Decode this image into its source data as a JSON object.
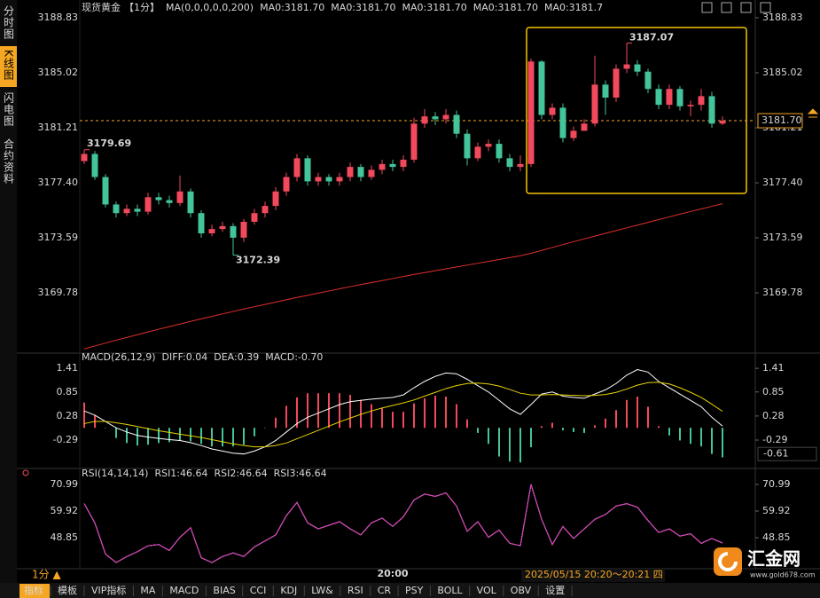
{
  "sidebar_tabs": [
    "分时图",
    "K线图",
    "闪电图",
    "合约资料"
  ],
  "chart_data": [
    {
      "type": "candlestick",
      "title": "现货黄金",
      "period": "【1分】",
      "indicator": "MA(0,0,0,0,0,200)",
      "ma_legend": [
        {
          "label": "MA0:3181.70",
          "color": "#ffffff"
        },
        {
          "label": "MA0:3181.70",
          "color": "#e6d200"
        },
        {
          "label": "MA0:3181.70",
          "color": "#d62fd6"
        },
        {
          "label": "MA0:3181.70",
          "color": "#3fc33f"
        },
        {
          "label": "MA0:3181.7",
          "color": "#9a9a9a"
        }
      ],
      "up_color": "#f2495c",
      "down_color": "#43c49a",
      "categories": [
        null,
        null,
        null,
        null,
        null,
        null,
        null,
        null,
        null,
        null,
        null,
        null,
        null,
        null,
        null,
        null,
        null,
        null,
        null,
        null,
        null,
        null,
        null,
        null,
        null,
        null,
        null,
        null,
        null,
        "20:00",
        null,
        null,
        null,
        null,
        null,
        null,
        null,
        null,
        null,
        null,
        null,
        null,
        null,
        null,
        null,
        null,
        null,
        null,
        null,
        null,
        null,
        null,
        null,
        null,
        null,
        null,
        null,
        null,
        null,
        null,
        null
      ],
      "open": [
        3178.9,
        3179.4,
        3177.8,
        3175.9,
        3175.3,
        3175.6,
        3175.4,
        3176.4,
        3176.2,
        3176.0,
        3176.8,
        3175.3,
        3173.9,
        3174.2,
        3174.4,
        3173.6,
        3174.7,
        3175.3,
        3175.8,
        3176.8,
        3177.8,
        3179.1,
        3177.5,
        3177.8,
        3177.5,
        3177.8,
        3178.5,
        3177.8,
        3178.3,
        3178.7,
        3178.5,
        3179.0,
        3181.5,
        3182.0,
        3181.8,
        3182.1,
        3180.8,
        3179.1,
        3179.9,
        3180.1,
        3179.1,
        3178.5,
        3178.7,
        3185.8,
        3182.1,
        3182.6,
        3180.5,
        3181.0,
        3181.5,
        3184.2,
        3183.3,
        3185.3,
        3185.6,
        3185.1,
        3183.9,
        3182.8,
        3183.9,
        3182.7,
        3182.8,
        3183.4,
        3181.5
      ],
      "high": [
        3179.69,
        3179.6,
        3178.0,
        3176.1,
        3175.9,
        3175.9,
        3176.7,
        3176.7,
        3176.5,
        3177.9,
        3177.0,
        3175.5,
        3174.5,
        3174.7,
        3174.6,
        3174.9,
        3175.6,
        3176.1,
        3177.1,
        3178.1,
        3179.4,
        3179.3,
        3178.1,
        3178.0,
        3178.1,
        3178.8,
        3178.7,
        3178.6,
        3179.0,
        3179.0,
        3179.3,
        3181.9,
        3182.5,
        3182.3,
        3182.5,
        3182.4,
        3181.1,
        3180.2,
        3180.4,
        3180.4,
        3179.4,
        3179.3,
        3186.0,
        3185.9,
        3182.9,
        3182.9,
        3181.3,
        3181.8,
        3186.2,
        3184.5,
        3185.6,
        3187.07,
        3185.9,
        3185.3,
        3184.2,
        3184.2,
        3184.1,
        3183.1,
        3183.9,
        3183.7,
        3182.0
      ],
      "low": [
        3178.7,
        3177.6,
        3175.7,
        3175.0,
        3175.1,
        3175.1,
        3175.2,
        3175.9,
        3175.7,
        3175.8,
        3175.0,
        3173.6,
        3173.7,
        3174.0,
        3172.39,
        3173.3,
        3174.5,
        3175.0,
        3175.5,
        3176.5,
        3177.5,
        3177.2,
        3177.2,
        3177.2,
        3177.2,
        3177.5,
        3177.5,
        3177.6,
        3178.0,
        3178.2,
        3178.2,
        3178.8,
        3181.2,
        3181.4,
        3181.5,
        3180.5,
        3178.6,
        3178.9,
        3179.6,
        3178.8,
        3178.2,
        3178.2,
        3178.5,
        3181.8,
        3181.8,
        3180.2,
        3180.3,
        3181.0,
        3181.3,
        3182.1,
        3183.0,
        3185.0,
        3184.8,
        3183.6,
        3182.5,
        3182.5,
        3182.4,
        3182.0,
        3182.4,
        3181.2,
        3181.4
      ],
      "close": [
        3179.4,
        3177.8,
        3175.9,
        3175.3,
        3175.6,
        3175.4,
        3176.4,
        3176.2,
        3176.0,
        3176.8,
        3175.3,
        3173.9,
        3174.2,
        3174.4,
        3173.6,
        3174.7,
        3175.3,
        3175.8,
        3176.8,
        3177.8,
        3179.1,
        3177.5,
        3177.8,
        3177.5,
        3177.8,
        3178.5,
        3177.8,
        3178.3,
        3178.7,
        3178.5,
        3179.0,
        3181.5,
        3182.0,
        3181.8,
        3182.1,
        3180.8,
        3179.1,
        3179.9,
        3180.1,
        3179.1,
        3178.5,
        3178.7,
        3185.8,
        3182.1,
        3182.6,
        3180.5,
        3181.0,
        3181.5,
        3184.2,
        3183.3,
        3185.3,
        3185.6,
        3185.1,
        3183.9,
        3182.8,
        3183.9,
        3182.7,
        3182.8,
        3183.4,
        3181.5,
        3181.7
      ],
      "ma_line": {
        "color": "#e0302a",
        "values": [
          3165.9,
          3166.1,
          3166.3,
          3166.5,
          3166.69,
          3166.88,
          3167.07,
          3167.26,
          3167.44,
          3167.62,
          3167.8,
          3167.98,
          3168.15,
          3168.32,
          3168.49,
          3168.66,
          3168.82,
          3168.98,
          3169.14,
          3169.3,
          3169.46,
          3169.61,
          3169.76,
          3169.91,
          3170.06,
          3170.21,
          3170.35,
          3170.49,
          3170.63,
          3170.77,
          3170.91,
          3171.05,
          3171.18,
          3171.31,
          3171.44,
          3171.57,
          3171.7,
          3171.83,
          3171.96,
          3172.09,
          3172.22,
          3172.35,
          3172.52,
          3172.72,
          3172.92,
          3173.12,
          3173.32,
          3173.52,
          3173.71,
          3173.9,
          3174.09,
          3174.28,
          3174.47,
          3174.66,
          3174.85,
          3175.04,
          3175.23,
          3175.41,
          3175.59,
          3175.77,
          3175.95
        ]
      },
      "last_price": {
        "value": 3181.7,
        "label": "3181.70",
        "color": "#f5a623"
      },
      "ylim": [
        3165.79,
        3188.83
      ],
      "yticks": [
        3188.83,
        3185.02,
        3181.21,
        {
          "value": 3177.4,
          "label": "3177.40"
        },
        3173.59,
        3169.78
      ]
    },
    {
      "type": "macd",
      "title": "MACD(26,12,9)",
      "series": [
        {
          "name": "DIFF:0.04",
          "color": "#ffffff",
          "values": [
            0.4,
            0.3,
            0.15,
            0.0,
            -0.1,
            -0.18,
            -0.22,
            -0.25,
            -0.28,
            -0.3,
            -0.35,
            -0.42,
            -0.5,
            -0.55,
            -0.6,
            -0.62,
            -0.55,
            -0.45,
            -0.3,
            -0.1,
            0.1,
            0.25,
            0.35,
            0.45,
            0.55,
            0.62,
            0.65,
            0.68,
            0.7,
            0.72,
            0.78,
            0.95,
            1.1,
            1.22,
            1.3,
            1.28,
            1.15,
            1.0,
            0.85,
            0.65,
            0.45,
            0.32,
            0.55,
            0.8,
            0.85,
            0.75,
            0.72,
            0.7,
            0.8,
            0.9,
            1.05,
            1.25,
            1.38,
            1.32,
            1.1,
            0.95,
            0.8,
            0.65,
            0.5,
            0.25,
            0.04
          ]
        },
        {
          "name": "DEA:0.39",
          "color": "#e6d200",
          "values": [
            0.1,
            0.15,
            0.15,
            0.12,
            0.08,
            0.03,
            -0.02,
            -0.07,
            -0.11,
            -0.15,
            -0.19,
            -0.23,
            -0.28,
            -0.33,
            -0.38,
            -0.42,
            -0.45,
            -0.45,
            -0.42,
            -0.36,
            -0.26,
            -0.16,
            -0.06,
            0.04,
            0.14,
            0.23,
            0.32,
            0.4,
            0.47,
            0.53,
            0.59,
            0.66,
            0.75,
            0.84,
            0.93,
            1.0,
            1.05,
            1.06,
            1.04,
            0.99,
            0.91,
            0.82,
            0.78,
            0.78,
            0.79,
            0.78,
            0.77,
            0.76,
            0.77,
            0.79,
            0.84,
            0.92,
            1.01,
            1.07,
            1.08,
            1.04,
            0.95,
            0.84,
            0.72,
            0.56,
            0.39
          ]
        }
      ],
      "histogram": {
        "name": "MACD:-0.70",
        "color": "#d62fd6",
        "up_color": "#f2495c",
        "down_color": "#43c49a",
        "values": [
          0.6,
          0.3,
          0.0,
          -0.24,
          -0.36,
          -0.42,
          -0.4,
          -0.36,
          -0.34,
          -0.3,
          -0.32,
          -0.38,
          -0.44,
          -0.44,
          -0.44,
          -0.4,
          -0.2,
          0.0,
          0.24,
          0.52,
          0.72,
          0.82,
          0.82,
          0.82,
          0.82,
          0.78,
          0.66,
          0.56,
          0.46,
          0.38,
          0.38,
          0.58,
          0.7,
          0.76,
          0.74,
          0.56,
          0.2,
          -0.12,
          -0.38,
          -0.68,
          -0.8,
          -0.82,
          -0.46,
          0.04,
          0.12,
          -0.06,
          -0.1,
          -0.12,
          0.06,
          0.22,
          0.42,
          0.66,
          0.74,
          0.5,
          0.04,
          -0.18,
          -0.3,
          -0.38,
          -0.44,
          -0.62,
          -0.7
        ]
      },
      "cursor_value": -0.61,
      "ylim": [
        -0.9,
        1.56
      ],
      "yticks": [
        1.41,
        0.85,
        0.28,
        -0.29
      ]
    },
    {
      "type": "rsi",
      "title": "RSI(14,14,14)",
      "series": [
        {
          "name": "RSI1:46.64",
          "color": "#ffffff",
          "values": [
            63.0,
            55.0,
            42.0,
            38.5,
            41.0,
            43.0,
            45.5,
            46.0,
            43.5,
            49.0,
            53.0,
            40.5,
            38.5,
            41.0,
            42.5,
            41.0,
            45.0,
            47.5,
            50.0,
            58.0,
            63.5,
            55.0,
            52.5,
            54.0,
            55.5,
            52.5,
            50.0,
            55.0,
            57.0,
            53.5,
            57.5,
            64.5,
            67.0,
            66.0,
            67.5,
            62.0,
            51.5,
            55.5,
            49.0,
            52.0,
            46.5,
            45.5,
            71.0,
            56.5,
            46.0,
            53.5,
            48.5,
            52.5,
            56.5,
            58.5,
            62.0,
            63.0,
            61.5,
            56.0,
            51.0,
            52.5,
            49.5,
            50.5,
            46.5,
            48.5,
            46.64
          ]
        },
        {
          "name": "RSI2:46.64",
          "color": "#e6d200",
          "values": [
            63.0,
            55.0,
            42.0,
            38.5,
            41.0,
            43.0,
            45.5,
            46.0,
            43.5,
            49.0,
            53.0,
            40.5,
            38.5,
            41.0,
            42.5,
            41.0,
            45.0,
            47.5,
            50.0,
            58.0,
            63.5,
            55.0,
            52.5,
            54.0,
            55.5,
            52.5,
            50.0,
            55.0,
            57.0,
            53.5,
            57.5,
            64.5,
            67.0,
            66.0,
            67.5,
            62.0,
            51.5,
            55.5,
            49.0,
            52.0,
            46.5,
            45.5,
            71.0,
            56.5,
            46.0,
            53.5,
            48.5,
            52.5,
            56.5,
            58.5,
            62.0,
            63.0,
            61.5,
            56.0,
            51.0,
            52.5,
            49.5,
            50.5,
            46.5,
            48.5,
            46.64
          ]
        },
        {
          "name": "RSI3:46.64",
          "color": "#d62fd6",
          "values": [
            63.0,
            55.0,
            42.0,
            38.5,
            41.0,
            43.0,
            45.5,
            46.0,
            43.5,
            49.0,
            53.0,
            40.5,
            38.5,
            41.0,
            42.5,
            41.0,
            45.0,
            47.5,
            50.0,
            58.0,
            63.5,
            55.0,
            52.5,
            54.0,
            55.5,
            52.5,
            50.0,
            55.0,
            57.0,
            53.5,
            57.5,
            64.5,
            67.0,
            66.0,
            67.5,
            62.0,
            51.5,
            55.5,
            49.0,
            52.0,
            46.5,
            45.5,
            71.0,
            56.5,
            46.0,
            53.5,
            48.5,
            52.5,
            56.5,
            58.5,
            62.0,
            63.0,
            61.5,
            56.0,
            51.0,
            52.5,
            49.5,
            50.5,
            46.5,
            48.5,
            46.64
          ]
        }
      ],
      "ylim": [
        36.3,
        73.94
      ],
      "yticks": [
        70.99,
        59.92,
        48.85
      ]
    }
  ],
  "period_button": "1分 ▲",
  "timestamp": "2025/05/15 20:20～20:21 四",
  "logo": {
    "name": "汇金网",
    "url": "www.gold678.com"
  },
  "toolbar": [
    "指标",
    "模板",
    "VIP指标",
    "MA",
    "MACD",
    "BIAS",
    "CCI",
    "KDJ",
    "LW&",
    "RSI",
    "CR",
    "PSY",
    "BOLL",
    "VOL",
    "OBV",
    "设置"
  ]
}
